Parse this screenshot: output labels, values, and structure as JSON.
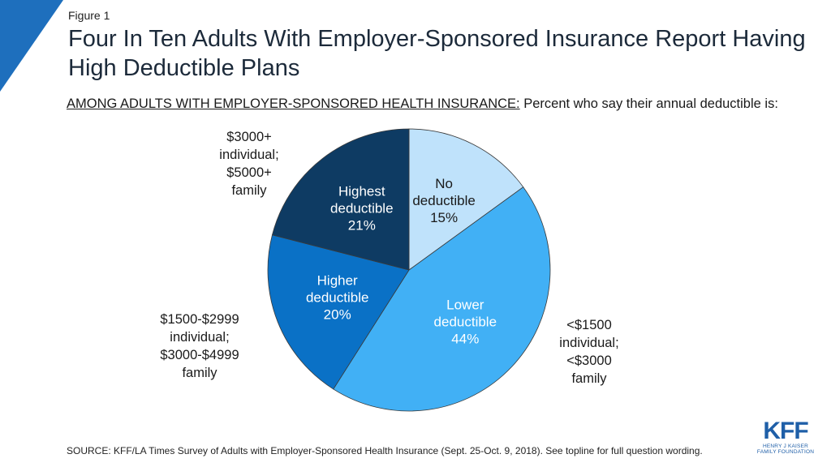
{
  "figure_label": "Figure 1",
  "title": "Four In Ten Adults With Employer-Sponsored Insurance Report Having High Deductible Plans",
  "subtitle_underlined": "AMONG ADULTS WITH EMPLOYER-SPONSORED HEALTH INSURANCE:",
  "subtitle_rest": " Percent who say their annual deductible is:",
  "annotations": {
    "highest": [
      "$3000+",
      "individual;",
      "$5000+",
      "family"
    ],
    "higher": [
      "$1500-$2999",
      "individual;",
      "$3000-$4999",
      "family"
    ],
    "lower": [
      "<$1500",
      "individual;",
      "<$3000",
      "family"
    ]
  },
  "source": "SOURCE: KFF/LA Times Survey of Adults with Employer-Sponsored Health Insurance (Sept. 25-Oct. 9, 2018). See topline for full question wording.",
  "logo": {
    "main": "KFF",
    "line1": "HENRY J KAISER",
    "line2": "FAMILY FOUNDATION"
  },
  "colors": {
    "corner": "#1e6fbd",
    "logo": "#1f5fa8"
  },
  "chart_data": {
    "type": "pie",
    "slices": [
      {
        "name": "No deductible",
        "label_lines": [
          "No",
          "deductible"
        ],
        "value": 15,
        "value_label": "15%",
        "color": "#bfe2fb",
        "text_color": "#1a1a1a"
      },
      {
        "name": "Lower deductible",
        "label_lines": [
          "Lower",
          "deductible"
        ],
        "value": 44,
        "value_label": "44%",
        "color": "#41b0f5",
        "text_color": "#ffffff"
      },
      {
        "name": "Higher deductible",
        "label_lines": [
          "Higher",
          "deductible"
        ],
        "value": 20,
        "value_label": "20%",
        "color": "#0a71c6",
        "text_color": "#ffffff"
      },
      {
        "name": "Highest deductible",
        "label_lines": [
          "Highest",
          "deductible"
        ],
        "value": 21,
        "value_label": "21%",
        "color": "#0e3b63",
        "text_color": "#ffffff"
      }
    ],
    "start": "12 o'clock",
    "direction": "clockwise"
  }
}
